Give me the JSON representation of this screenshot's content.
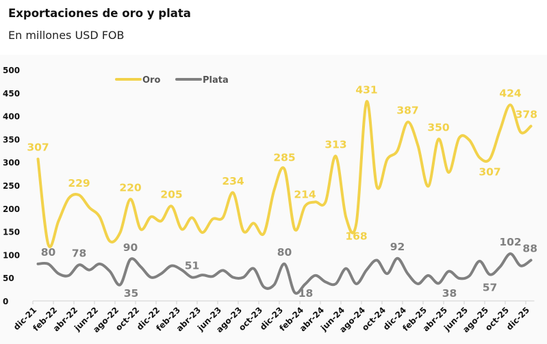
{
  "header": {
    "title": "Exportaciones de oro y plata",
    "subtitle": "En millones USD FOB"
  },
  "chart_data": {
    "type": "line",
    "title": "Exportaciones de oro y plata",
    "subtitle": "En millones USD FOB",
    "xlabel": "",
    "ylabel": "",
    "ylim": [
      0,
      500
    ],
    "yticks": [
      0,
      50,
      100,
      150,
      200,
      250,
      300,
      350,
      400,
      450,
      500
    ],
    "grid": false,
    "legend_position": "top-left",
    "smooth": true,
    "x": [
      "dic-21",
      "ene-22",
      "feb-22",
      "mar-22",
      "abr-22",
      "may-22",
      "jun-22",
      "jul-22",
      "ago-22",
      "sep-22",
      "oct-22",
      "nov-22",
      "dic-22",
      "ene-23",
      "feb-23",
      "mar-23",
      "abr-23",
      "may-23",
      "jun-23",
      "jul-23",
      "ago-23",
      "sep-23",
      "oct-23",
      "nov-23",
      "dic-23",
      "ene-24",
      "feb-24",
      "mar-24",
      "abr-24",
      "may-24",
      "jun-24",
      "jul-24",
      "ago-24",
      "sep-24",
      "oct-24",
      "nov-24",
      "dic-24",
      "ene-25",
      "feb-25",
      "mar-25",
      "abr-25",
      "may-25",
      "jun-25",
      "jul-25",
      "ago-25",
      "sep-25",
      "oct-25",
      "nov-25",
      "dic-25"
    ],
    "xtick_labels": [
      "dic-21",
      "feb-22",
      "abr-22",
      "jun-22",
      "ago-22",
      "oct-22",
      "dic-22",
      "feb-23",
      "abr-23",
      "jun-23",
      "ago-23",
      "oct-23",
      "dic-23",
      "feb-24",
      "abr-24",
      "jun-24",
      "ago-24",
      "oct-24",
      "dic-24",
      "feb-25",
      "abr-25",
      "jun-25",
      "ago-25",
      "oct-25",
      "dic-25"
    ],
    "series": [
      {
        "name": "Oro",
        "color": "#F2D24B",
        "values": [
          307,
          122,
          173,
          222,
          229,
          202,
          182,
          129,
          148,
          220,
          155,
          182,
          173,
          205,
          155,
          180,
          148,
          177,
          180,
          234,
          151,
          168,
          146,
          240,
          285,
          155,
          205,
          214,
          214,
          313,
          180,
          168,
          431,
          247,
          306,
          325,
          387,
          336,
          248,
          350,
          278,
          352,
          348,
          310,
          307,
          370,
          424,
          365,
          378
        ]
      },
      {
        "name": "Plata",
        "color": "#808080",
        "values": [
          80,
          80,
          59,
          55,
          78,
          67,
          80,
          64,
          35,
          90,
          74,
          51,
          59,
          76,
          67,
          51,
          56,
          53,
          66,
          51,
          51,
          70,
          30,
          35,
          80,
          18,
          36,
          55,
          41,
          37,
          70,
          37,
          67,
          88,
          59,
          92,
          59,
          37,
          55,
          38,
          64,
          49,
          54,
          86,
          57,
          74,
          102,
          76,
          88
        ]
      }
    ],
    "annotations": [
      {
        "series": 0,
        "index": 0,
        "text": "307",
        "placement": "above"
      },
      {
        "series": 0,
        "index": 4,
        "text": "229",
        "placement": "above"
      },
      {
        "series": 0,
        "index": 9,
        "text": "220",
        "placement": "above"
      },
      {
        "series": 0,
        "index": 13,
        "text": "205",
        "placement": "above"
      },
      {
        "series": 0,
        "index": 19,
        "text": "234",
        "placement": "above"
      },
      {
        "series": 0,
        "index": 24,
        "text": "285",
        "placement": "above"
      },
      {
        "series": 0,
        "index": 26,
        "text": "214",
        "placement": "above"
      },
      {
        "series": 0,
        "index": 29,
        "text": "313",
        "placement": "above"
      },
      {
        "series": 0,
        "index": 31,
        "text": "168",
        "placement": "below"
      },
      {
        "series": 0,
        "index": 32,
        "text": "431",
        "placement": "above"
      },
      {
        "series": 0,
        "index": 36,
        "text": "387",
        "placement": "above"
      },
      {
        "series": 0,
        "index": 39,
        "text": "350",
        "placement": "above"
      },
      {
        "series": 0,
        "index": 44,
        "text": "307",
        "placement": "below"
      },
      {
        "series": 0,
        "index": 46,
        "text": "424",
        "placement": "above"
      },
      {
        "series": 0,
        "index": 48,
        "text": "378",
        "placement": "above"
      },
      {
        "series": 1,
        "index": 1,
        "text": "80",
        "placement": "above"
      },
      {
        "series": 1,
        "index": 4,
        "text": "78",
        "placement": "above"
      },
      {
        "series": 1,
        "index": 8,
        "text": "35",
        "placement": "below"
      },
      {
        "series": 1,
        "index": 9,
        "text": "90",
        "placement": "above"
      },
      {
        "series": 1,
        "index": 15,
        "text": "51",
        "placement": "above"
      },
      {
        "series": 1,
        "index": 24,
        "text": "80",
        "placement": "above"
      },
      {
        "series": 1,
        "index": 25,
        "text": "18",
        "placement": "below"
      },
      {
        "series": 1,
        "index": 35,
        "text": "92",
        "placement": "above"
      },
      {
        "series": 1,
        "index": 39,
        "text": "38",
        "placement": "below"
      },
      {
        "series": 1,
        "index": 44,
        "text": "57",
        "placement": "below"
      },
      {
        "series": 1,
        "index": 46,
        "text": "102",
        "placement": "above"
      },
      {
        "series": 1,
        "index": 48,
        "text": "88",
        "placement": "above"
      }
    ]
  }
}
